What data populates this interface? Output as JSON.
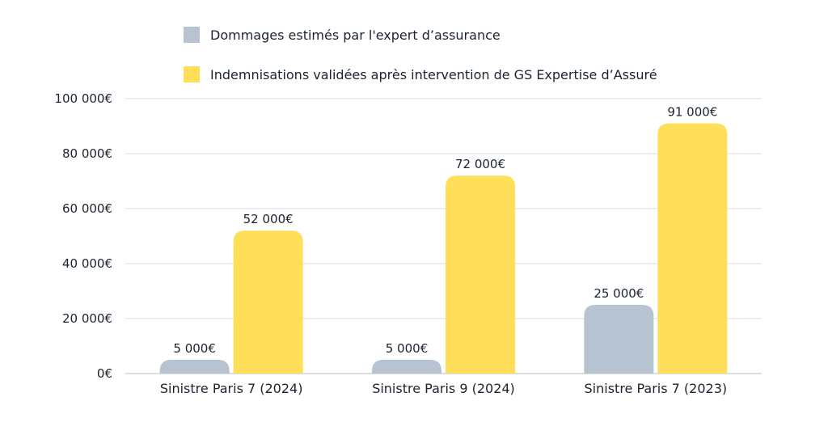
{
  "chart_data": {
    "type": "bar",
    "categories": [
      "Sinistre Paris 7 (2024)",
      "Sinistre Paris 9 (2024)",
      "Sinistre Paris 7 (2023)"
    ],
    "series": [
      {
        "name": "Dommages estimés par l'expert d’assurance",
        "color": "#b8c3d1",
        "values": [
          5000,
          5000,
          25000
        ],
        "labels": [
          "5 000€",
          "5 000€",
          "25 000€"
        ]
      },
      {
        "name": "Indemnisations validées après intervention de GS Expertise d’Assuré",
        "color": "#ffde59",
        "values": [
          52000,
          72000,
          91000
        ],
        "labels": [
          "52 000€",
          "72 000€",
          "91 000€"
        ]
      }
    ],
    "ylim": [
      0,
      100000
    ],
    "yticks": [
      0,
      20000,
      40000,
      60000,
      80000,
      100000
    ],
    "ytick_labels": [
      "0€",
      "20 000€",
      "40 000€",
      "60 000€",
      "80 000€",
      "100 000€"
    ],
    "grid": true,
    "legend_position": "top",
    "title": "",
    "xlabel": "",
    "ylabel": ""
  }
}
